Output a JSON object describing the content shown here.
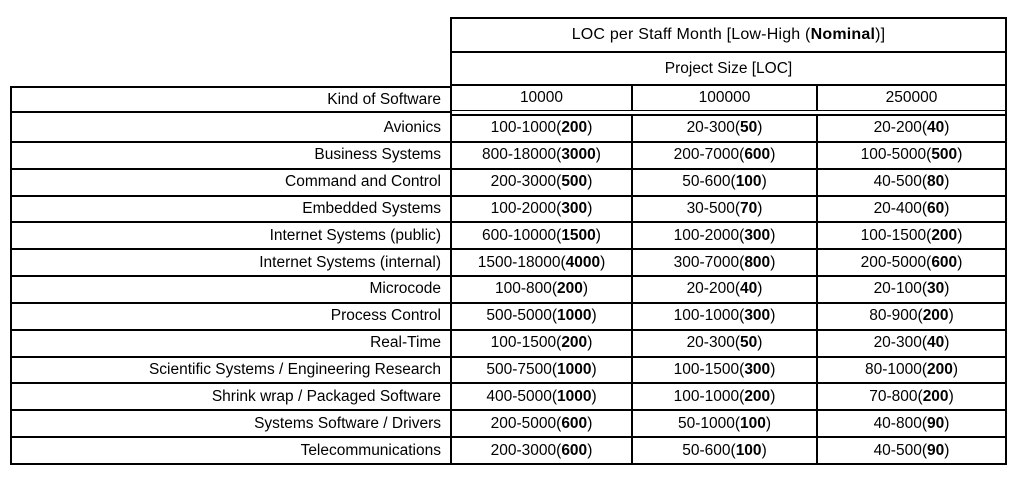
{
  "table": {
    "title_prefix": "LOC per Staff Month [Low-High (",
    "title_bold": "Nominal",
    "title_suffix": ")]",
    "subtitle": "Project Size [LOC]",
    "row_header": "Kind of Software",
    "columns": [
      "10000",
      "100000",
      "250000"
    ],
    "rows": [
      {
        "label": "Avionics",
        "cells": [
          {
            "range": "100-1000",
            "nominal": "200"
          },
          {
            "range": "20-300",
            "nominal": "50"
          },
          {
            "range": "20-200",
            "nominal": "40"
          }
        ]
      },
      {
        "label": "Business Systems",
        "cells": [
          {
            "range": "800-18000",
            "nominal": "3000"
          },
          {
            "range": "200-7000",
            "nominal": "600"
          },
          {
            "range": "100-5000",
            "nominal": "500"
          }
        ]
      },
      {
        "label": "Command and Control",
        "cells": [
          {
            "range": "200-3000",
            "nominal": "500"
          },
          {
            "range": "50-600",
            "nominal": "100"
          },
          {
            "range": "40-500",
            "nominal": "80"
          }
        ]
      },
      {
        "label": "Embedded Systems",
        "cells": [
          {
            "range": "100-2000",
            "nominal": "300"
          },
          {
            "range": "30-500",
            "nominal": "70"
          },
          {
            "range": "20-400",
            "nominal": "60"
          }
        ]
      },
      {
        "label": "Internet Systems (public)",
        "cells": [
          {
            "range": "600-10000",
            "nominal": "1500"
          },
          {
            "range": "100-2000",
            "nominal": "300"
          },
          {
            "range": "100-1500",
            "nominal": "200"
          }
        ]
      },
      {
        "label": "Internet Systems (internal)",
        "cells": [
          {
            "range": "1500-18000",
            "nominal": "4000"
          },
          {
            "range": "300-7000",
            "nominal": "800"
          },
          {
            "range": "200-5000",
            "nominal": "600"
          }
        ]
      },
      {
        "label": "Microcode",
        "cells": [
          {
            "range": "100-800",
            "nominal": "200"
          },
          {
            "range": "20-200",
            "nominal": "40"
          },
          {
            "range": "20-100",
            "nominal": "30"
          }
        ]
      },
      {
        "label": "Process Control",
        "cells": [
          {
            "range": "500-5000",
            "nominal": "1000"
          },
          {
            "range": "100-1000",
            "nominal": "300"
          },
          {
            "range": "80-900",
            "nominal": "200"
          }
        ]
      },
      {
        "label": "Real-Time",
        "cells": [
          {
            "range": "100-1500",
            "nominal": "200"
          },
          {
            "range": "20-300",
            "nominal": "50"
          },
          {
            "range": "20-300",
            "nominal": "40"
          }
        ]
      },
      {
        "label": "Scientific Systems / Engineering Research",
        "cells": [
          {
            "range": "500-7500",
            "nominal": "1000"
          },
          {
            "range": "100-1500",
            "nominal": "300"
          },
          {
            "range": "80-1000",
            "nominal": "200"
          }
        ]
      },
      {
        "label": "Shrink wrap / Packaged Software",
        "cells": [
          {
            "range": "400-5000",
            "nominal": "1000"
          },
          {
            "range": "100-1000",
            "nominal": "200"
          },
          {
            "range": "70-800",
            "nominal": "200"
          }
        ]
      },
      {
        "label": "Systems Software / Drivers",
        "cells": [
          {
            "range": "200-5000",
            "nominal": "600"
          },
          {
            "range": "50-1000",
            "nominal": "100"
          },
          {
            "range": "40-800",
            "nominal": "90"
          }
        ]
      },
      {
        "label": "Telecommunications",
        "cells": [
          {
            "range": "200-3000",
            "nominal": "600"
          },
          {
            "range": "50-600",
            "nominal": "100"
          },
          {
            "range": "40-500",
            "nominal": "90"
          }
        ]
      }
    ]
  }
}
